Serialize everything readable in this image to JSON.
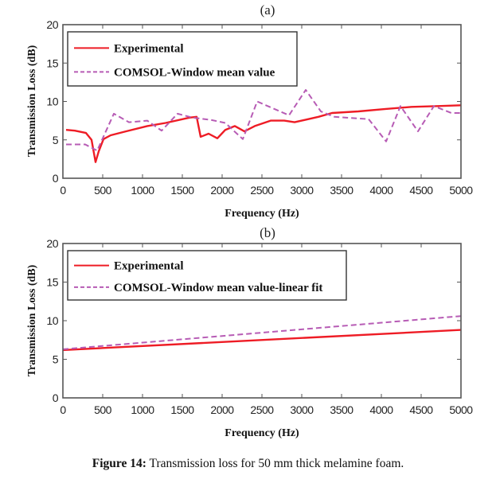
{
  "caption": {
    "label": "Figure 14:",
    "text": "Transmission loss for 50 mm thick melamine foam."
  },
  "colors": {
    "experimental": "#ee1c25",
    "comsol": "#b75cb5",
    "axis": "#555555"
  },
  "chart_data": [
    {
      "type": "line",
      "panel_label": "(a)",
      "title": "",
      "xlabel": "Frequency (Hz)",
      "ylabel": "Transmission Loss (dB)",
      "xlim": [
        0,
        5000
      ],
      "ylim": [
        0,
        20
      ],
      "xticks": [
        0,
        500,
        1000,
        1500,
        2000,
        2500,
        3000,
        3500,
        4000,
        4500,
        5000
      ],
      "yticks": [
        0,
        5,
        10,
        15,
        20
      ],
      "grid": false,
      "legend": {
        "placement": "top-left",
        "entries": [
          "Experimental",
          "COMSOL-Window mean value"
        ]
      },
      "series": [
        {
          "name": "Experimental",
          "style": "solid",
          "x": [
            40,
            150,
            290,
            360,
            410,
            450,
            510,
            600,
            790,
            1060,
            1290,
            1590,
            1680,
            1730,
            1830,
            1940,
            2040,
            2160,
            2280,
            2410,
            2610,
            2780,
            2910,
            3210,
            3380,
            3710,
            4040,
            4380,
            4710,
            5000
          ],
          "y": [
            6.3,
            6.2,
            5.9,
            5.0,
            2.1,
            3.5,
            5.1,
            5.6,
            6.1,
            6.8,
            7.2,
            7.9,
            8.0,
            5.4,
            5.8,
            5.2,
            6.3,
            6.8,
            6.1,
            6.8,
            7.5,
            7.5,
            7.3,
            8.0,
            8.5,
            8.7,
            9.0,
            9.3,
            9.4,
            9.5
          ]
        },
        {
          "name": "COMSOL-Window mean value",
          "style": "dashed",
          "x": [
            40,
            280,
            430,
            640,
            830,
            1060,
            1240,
            1440,
            1630,
            1860,
            2040,
            2260,
            2440,
            2840,
            3050,
            3240,
            3410,
            3840,
            4060,
            4240,
            4460,
            4660,
            4880,
            5000
          ],
          "y": [
            4.4,
            4.4,
            3.6,
            8.4,
            7.3,
            7.5,
            6.2,
            8.4,
            7.9,
            7.6,
            7.2,
            5.1,
            10.0,
            8.2,
            11.5,
            8.7,
            8.0,
            7.7,
            4.8,
            9.4,
            6.1,
            9.4,
            8.5,
            8.5
          ]
        }
      ]
    },
    {
      "type": "line",
      "panel_label": "(b)",
      "title": "",
      "xlabel": "Frequency (Hz)",
      "ylabel": "Transmission Loss (dB)",
      "xlim": [
        0,
        5000
      ],
      "ylim": [
        0,
        20
      ],
      "xticks": [
        0,
        500,
        1000,
        1500,
        2000,
        2500,
        3000,
        3500,
        4000,
        4500,
        5000
      ],
      "yticks": [
        0,
        5,
        10,
        15,
        20
      ],
      "grid": false,
      "legend": {
        "placement": "top-left",
        "entries": [
          "Experimental",
          "COMSOL-Window mean value-linear fit"
        ]
      },
      "series": [
        {
          "name": "Experimental",
          "style": "solid",
          "x": [
            0,
            5000
          ],
          "y": [
            6.2,
            8.8
          ]
        },
        {
          "name": "COMSOL-Window mean value-linear fit",
          "style": "dashed",
          "x": [
            0,
            5000
          ],
          "y": [
            6.3,
            10.6
          ]
        }
      ]
    }
  ]
}
